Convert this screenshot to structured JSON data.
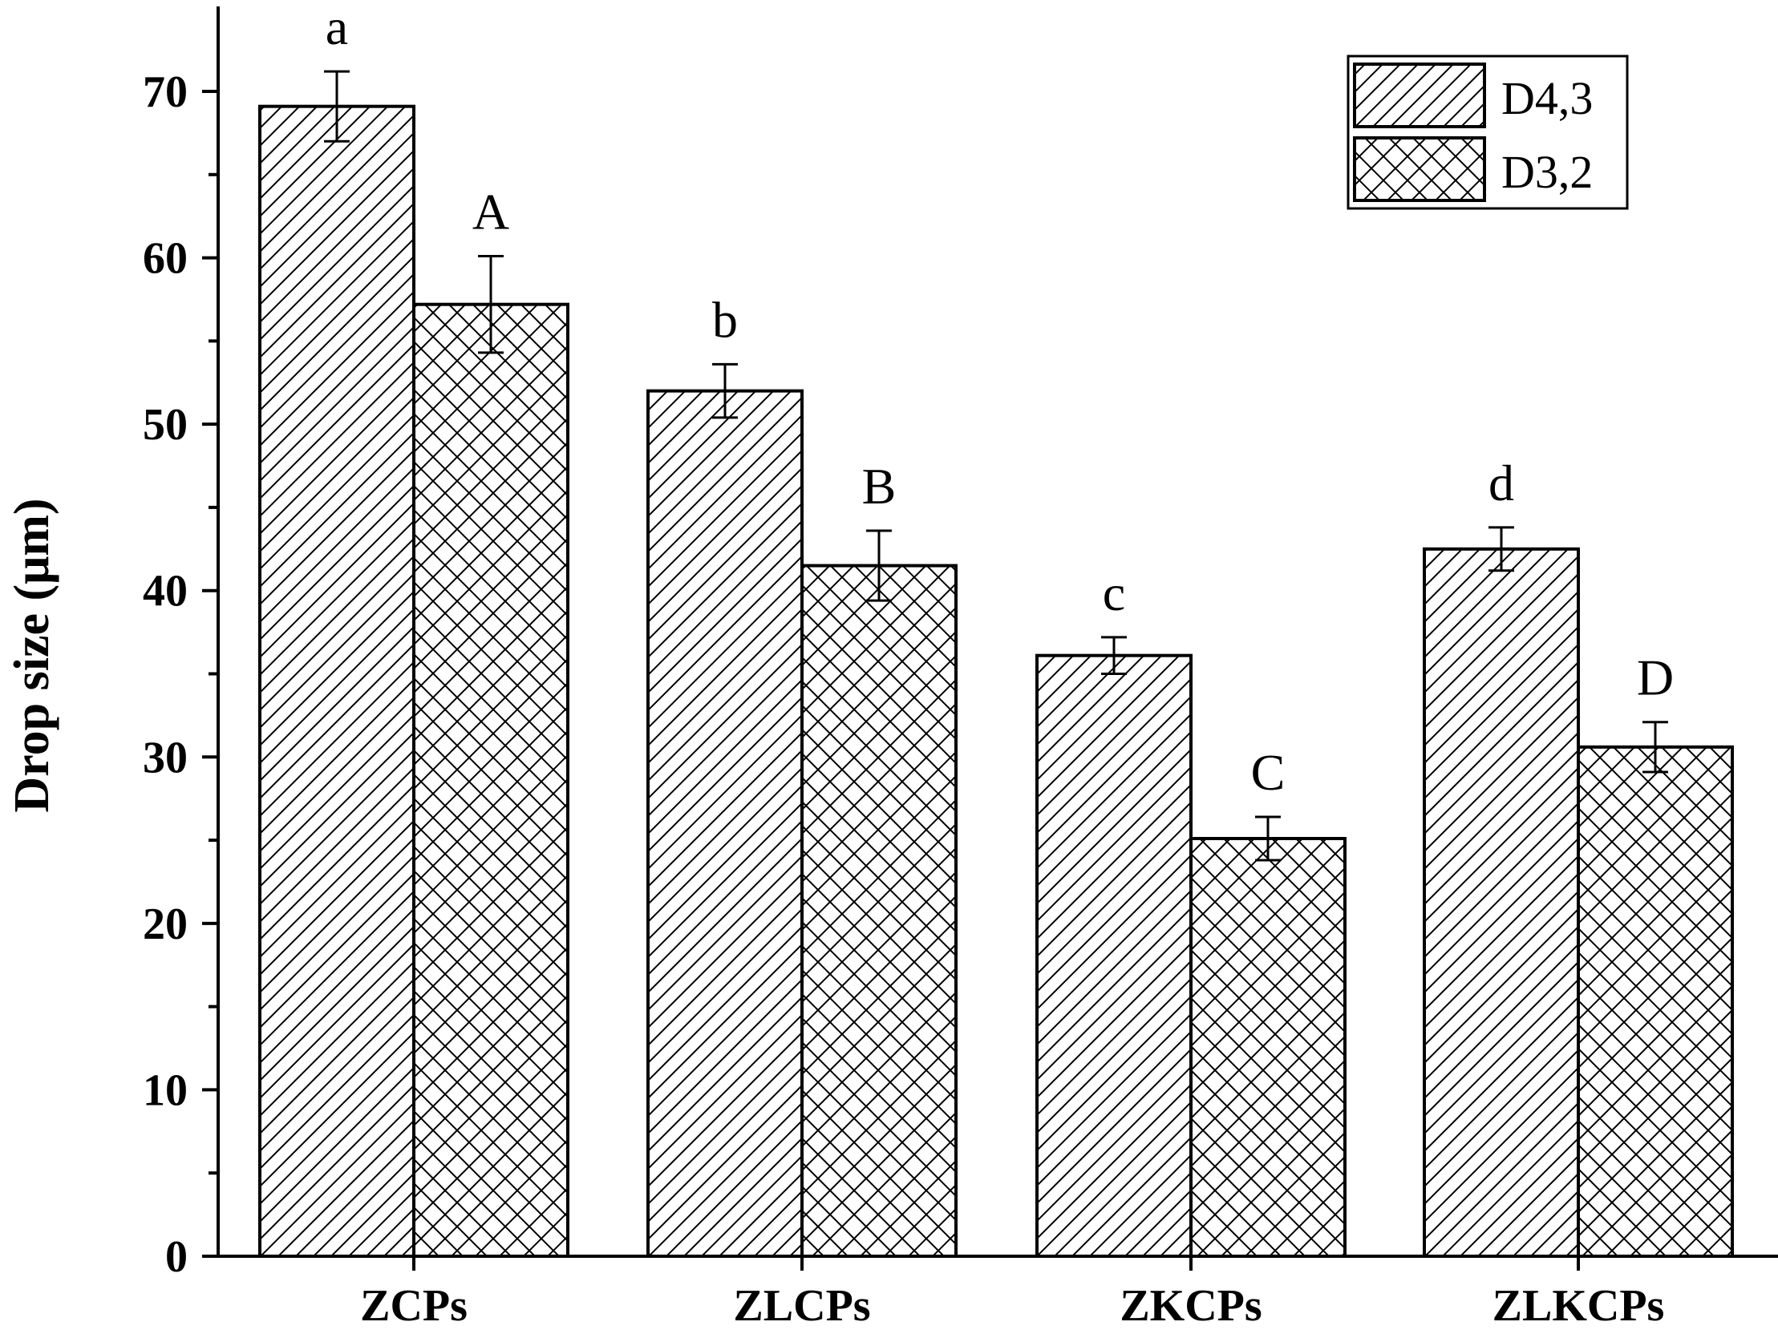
{
  "chart_data": {
    "type": "bar",
    "ylabel": "Drop size (μm)",
    "xlabel": "",
    "ylim": [
      0,
      70
    ],
    "yticks": [
      0,
      10,
      20,
      30,
      40,
      50,
      60,
      70
    ],
    "grid": false,
    "legend_position": "top-right",
    "categories": [
      "ZCPs",
      "ZLCPs",
      "ZKCPs",
      "ZLKCPs"
    ],
    "series": [
      {
        "name": "D4,3",
        "pattern": "diagonal-hatch",
        "values": [
          69.1,
          52.0,
          36.1,
          42.5
        ],
        "errors": [
          2.1,
          1.6,
          1.1,
          1.3
        ],
        "labels": [
          "a",
          "b",
          "c",
          "d"
        ]
      },
      {
        "name": "D3,2",
        "pattern": "cross-hatch",
        "values": [
          57.2,
          41.5,
          25.1,
          30.6
        ],
        "errors": [
          2.9,
          2.1,
          1.3,
          1.5
        ],
        "labels": [
          "A",
          "B",
          "C",
          "D"
        ]
      }
    ],
    "colors": {
      "fill": "#ffffff",
      "stroke": "#000000"
    }
  }
}
